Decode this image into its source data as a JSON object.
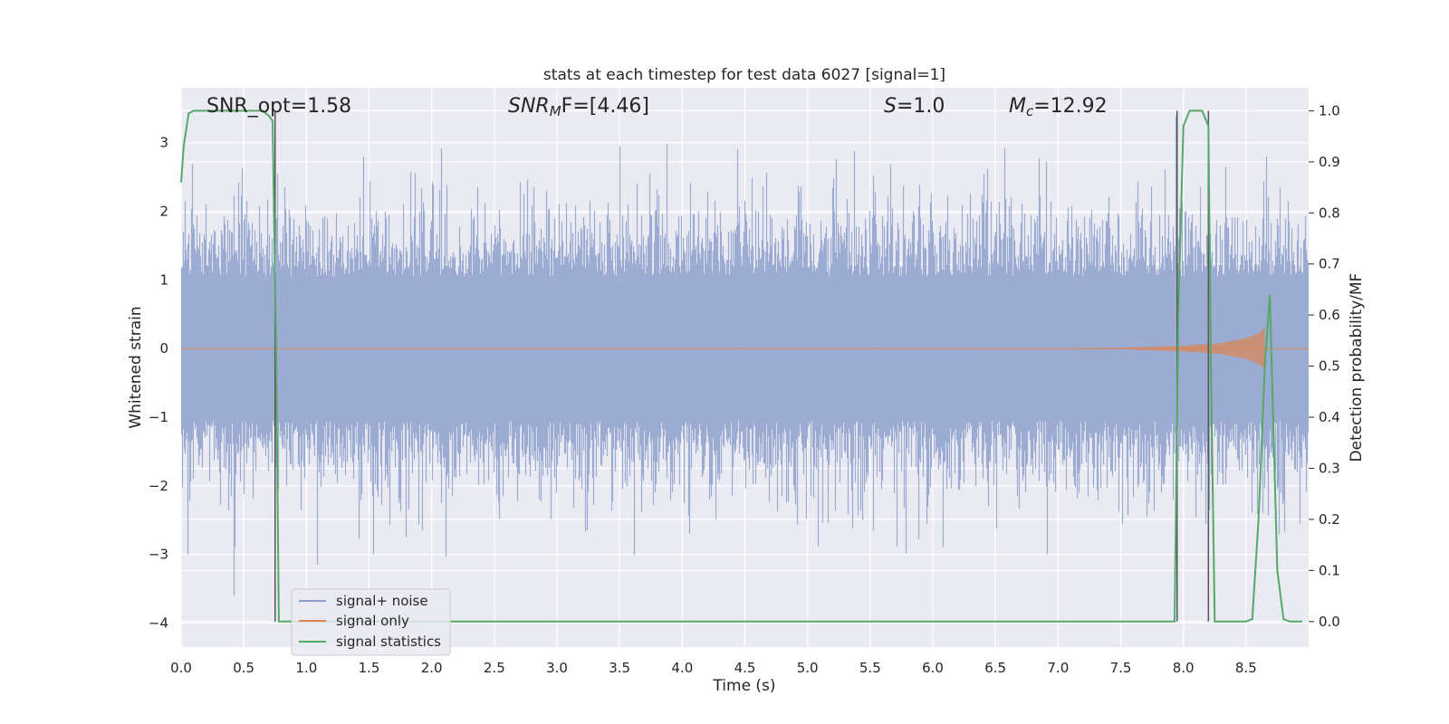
{
  "chart_data": {
    "type": "line",
    "title": "stats at each timestep for test data 6027 [signal=1]",
    "xlabel": "Time (s)",
    "ylabel": "Whitened strain",
    "ylabel_right": "Detection probability/MF",
    "xlim": [
      0.0,
      9.0
    ],
    "ylim": [
      -4.35,
      3.8
    ],
    "ylim_right": [
      -0.05,
      1.045
    ],
    "x_ticks": [
      "0.0",
      "0.5",
      "1.0",
      "1.5",
      "2.0",
      "2.5",
      "3.0",
      "3.5",
      "4.0",
      "4.5",
      "5.0",
      "5.5",
      "6.0",
      "6.5",
      "7.0",
      "7.5",
      "8.0",
      "8.5"
    ],
    "y_ticks": [
      "3",
      "2",
      "1",
      "0",
      "−1",
      "−2",
      "−3",
      "−4"
    ],
    "y_ticks_right": [
      "1.0",
      "0.9",
      "0.8",
      "0.7",
      "0.6",
      "0.5",
      "0.4",
      "0.3",
      "0.2",
      "0.1",
      "0.0"
    ],
    "grid": true,
    "legend_position": "lower-left",
    "annotations": {
      "snr_opt": "SNR_opt=1.58",
      "snr_mf_base": "SNR",
      "snr_mf_sub": "M",
      "snr_mf_rest": "F=[4.46]",
      "s_var": "S",
      "s_rest": "=1.0",
      "mc_base": "M",
      "mc_sub": "c",
      "mc_rest": "=12.92"
    },
    "vertical_lines_x": [
      0.75,
      7.95,
      8.2
    ],
    "series": [
      {
        "name": "signal+ noise",
        "color": "#8da0cb",
        "description_values": "noise band approx ±1.6 std, peaks up to 3.4 / -3.6"
      },
      {
        "name": "signal only",
        "color": "#dd8452",
        "x": [
          0.0,
          7.0,
          7.5,
          8.0,
          8.3,
          8.5,
          8.6,
          8.65
        ],
        "amplitude": [
          0.0,
          0.005,
          0.01,
          0.04,
          0.08,
          0.15,
          0.22,
          0.3
        ]
      },
      {
        "name": "signal statistics",
        "color": "#55a868",
        "x": [
          0.0,
          0.02,
          0.06,
          0.1,
          0.2,
          0.3,
          0.4,
          0.5,
          0.6,
          0.65,
          0.7,
          0.73,
          0.76,
          0.78,
          0.8,
          0.9,
          1.5,
          3.0,
          5.0,
          7.0,
          7.8,
          7.93,
          7.96,
          8.0,
          8.05,
          8.1,
          8.15,
          8.2,
          8.22,
          8.25,
          8.3,
          8.4,
          8.5,
          8.55,
          8.6,
          8.65,
          8.69,
          8.75,
          8.8,
          8.85,
          8.9,
          8.95
        ],
        "values": [
          0.86,
          0.93,
          0.995,
          1.0,
          1.0,
          1.0,
          1.0,
          1.0,
          1.0,
          1.0,
          0.99,
          0.98,
          0.5,
          0.0,
          0.0,
          0.0,
          0.0,
          0.0,
          0.0,
          0.0,
          0.0,
          0.0,
          0.6,
          0.97,
          1.0,
          1.0,
          1.0,
          0.97,
          0.5,
          0.0,
          0.0,
          0.0,
          0.0,
          0.005,
          0.2,
          0.5,
          0.64,
          0.1,
          0.005,
          0.0,
          0.0,
          0.0
        ]
      }
    ]
  }
}
